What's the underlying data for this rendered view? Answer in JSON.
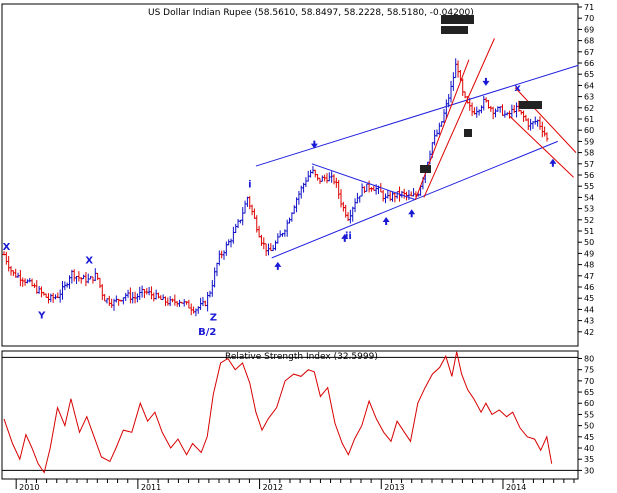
{
  "colors": {
    "frame": "#000000",
    "price_bar": "#1010c8",
    "price_bar_red": "#e00000",
    "trend_blue": "#2020e0",
    "trend_red": "#e00000",
    "rsi_line": "#d80000",
    "label_blue": "#1a1ad6",
    "background": "#ffffff"
  },
  "price_panel": {
    "title": "US Dollar Indian Rupee  (58.5610, 58.8497, 58.2228, 58.5180, -0.04200)"
  },
  "rsi_panel": {
    "title": "Relative Strength Index (32.5999)"
  },
  "x_axis": {
    "labels": [
      "2010",
      "2011",
      "2012",
      "2013",
      "2014"
    ]
  },
  "chart_data": [
    {
      "type": "ohlc",
      "title": "US Dollar Indian Rupee  (58.5610, 58.8497, 58.2228, 58.5180, -0.04200)",
      "ylim": [
        41,
        71
      ],
      "y_ticks": [
        42,
        43,
        44,
        45,
        46,
        47,
        48,
        49,
        50,
        51,
        52,
        53,
        54,
        55,
        56,
        57,
        58,
        59,
        60,
        61,
        62,
        63,
        64,
        65,
        66,
        67,
        68,
        69,
        70,
        71
      ],
      "x_range": [
        2009.9,
        2014.6
      ],
      "series_close": [
        [
          2009.9,
          48.9
        ],
        [
          2009.97,
          47.2
        ],
        [
          2010.05,
          46.8
        ],
        [
          2010.12,
          46.2
        ],
        [
          2010.2,
          45.5
        ],
        [
          2010.27,
          44.9
        ],
        [
          2010.34,
          45.2
        ],
        [
          2010.4,
          46.0
        ],
        [
          2010.45,
          47.3
        ],
        [
          2010.52,
          46.8
        ],
        [
          2010.6,
          46.6
        ],
        [
          2010.66,
          47.1
        ],
        [
          2010.72,
          45.0
        ],
        [
          2010.8,
          44.6
        ],
        [
          2010.9,
          45.3
        ],
        [
          2010.97,
          45.0
        ],
        [
          2011.05,
          45.6
        ],
        [
          2011.12,
          45.3
        ],
        [
          2011.2,
          44.8
        ],
        [
          2011.27,
          44.6
        ],
        [
          2011.34,
          44.8
        ],
        [
          2011.4,
          44.4
        ],
        [
          2011.47,
          44.0
        ],
        [
          2011.55,
          44.5
        ],
        [
          2011.6,
          45.8
        ],
        [
          2011.66,
          48.5
        ],
        [
          2011.72,
          49.5
        ],
        [
          2011.78,
          50.6
        ],
        [
          2011.85,
          52.3
        ],
        [
          2011.9,
          54.0
        ],
        [
          2011.95,
          52.3
        ],
        [
          2012.02,
          50.0
        ],
        [
          2012.08,
          49.0
        ],
        [
          2012.15,
          50.2
        ],
        [
          2012.22,
          51.5
        ],
        [
          2012.3,
          53.8
        ],
        [
          2012.38,
          55.6
        ],
        [
          2012.43,
          56.4
        ],
        [
          2012.48,
          55.5
        ],
        [
          2012.55,
          55.8
        ],
        [
          2012.62,
          55.5
        ],
        [
          2012.68,
          53.2
        ],
        [
          2012.73,
          52.2
        ],
        [
          2012.78,
          53.6
        ],
        [
          2012.85,
          54.8
        ],
        [
          2012.92,
          55.0
        ],
        [
          2012.98,
          54.6
        ],
        [
          2013.04,
          53.8
        ],
        [
          2013.1,
          54.2
        ],
        [
          2013.17,
          54.3
        ],
        [
          2013.24,
          54.0
        ],
        [
          2013.3,
          54.3
        ],
        [
          2013.36,
          56.5
        ],
        [
          2013.42,
          58.9
        ],
        [
          2013.48,
          60.2
        ],
        [
          2013.52,
          61.6
        ],
        [
          2013.57,
          63.6
        ],
        [
          2013.62,
          66.2
        ],
        [
          2013.66,
          63.5
        ],
        [
          2013.7,
          62.4
        ],
        [
          2013.75,
          61.6
        ],
        [
          2013.8,
          62.0
        ],
        [
          2013.85,
          62.6
        ],
        [
          2013.92,
          61.8
        ],
        [
          2013.98,
          61.8
        ],
        [
          2014.03,
          61.2
        ],
        [
          2014.1,
          62.0
        ],
        [
          2014.16,
          61.3
        ],
        [
          2014.22,
          60.4
        ],
        [
          2014.28,
          60.9
        ],
        [
          2014.34,
          59.8
        ],
        [
          2014.38,
          58.6
        ]
      ],
      "wave_labels": [
        {
          "text": "X",
          "x": 2009.92,
          "y": 49.3
        },
        {
          "text": "Y",
          "x": 2010.21,
          "y": 43.2
        },
        {
          "text": "X",
          "x": 2010.6,
          "y": 48.1
        },
        {
          "text": "Z",
          "x": 2011.62,
          "y": 43.0
        },
        {
          "text": "B/2",
          "x": 2011.57,
          "y": 41.7
        },
        {
          "text": "i",
          "x": 2011.92,
          "y": 54.9
        },
        {
          "text": "ii",
          "x": 2012.73,
          "y": 50.3
        },
        {
          "text": "x",
          "x": 2014.12,
          "y": 63.5
        }
      ],
      "arrows": [
        {
          "dir": "up",
          "x": 2012.15,
          "y": 47.8
        },
        {
          "dir": "down",
          "x": 2012.45,
          "y": 58.8
        },
        {
          "dir": "up",
          "x": 2012.7,
          "y": 50.3
        },
        {
          "dir": "up",
          "x": 2013.04,
          "y": 51.8
        },
        {
          "dir": "up",
          "x": 2013.25,
          "y": 52.5
        },
        {
          "dir": "down",
          "x": 2013.86,
          "y": 64.4
        },
        {
          "dir": "up",
          "x": 2014.41,
          "y": 57.0
        }
      ],
      "trendlines_blue": [
        [
          [
            2011.97,
            56.8
          ],
          [
            2014.62,
            65.8
          ]
        ],
        [
          [
            2012.1,
            48.6
          ],
          [
            2014.45,
            59.0
          ]
        ],
        [
          [
            2012.43,
            57.0
          ],
          [
            2013.28,
            53.8
          ]
        ]
      ],
      "trendlines_red": [
        [
          [
            2013.28,
            53.8
          ],
          [
            2013.72,
            66.3
          ]
        ],
        [
          [
            2013.35,
            54.0
          ],
          [
            2013.93,
            68.2
          ]
        ],
        [
          [
            2014.1,
            63.8
          ],
          [
            2014.6,
            58.0
          ]
        ],
        [
          [
            2014.05,
            61.3
          ],
          [
            2014.58,
            55.8
          ]
        ]
      ]
    },
    {
      "type": "line",
      "title": "Relative Strength Index (32.5999)",
      "ylim": [
        27.5,
        82
      ],
      "y_ticks": [
        30,
        35,
        40,
        45,
        50,
        55,
        60,
        65,
        70,
        75,
        80
      ],
      "hlines": [
        30,
        80.5
      ],
      "x_range": [
        2009.9,
        2014.6
      ],
      "values": [
        [
          2009.9,
          53
        ],
        [
          2009.97,
          42
        ],
        [
          2010.03,
          35
        ],
        [
          2010.08,
          46
        ],
        [
          2010.13,
          40
        ],
        [
          2010.18,
          33
        ],
        [
          2010.23,
          29
        ],
        [
          2010.28,
          40
        ],
        [
          2010.34,
          58
        ],
        [
          2010.4,
          50
        ],
        [
          2010.45,
          62
        ],
        [
          2010.52,
          47
        ],
        [
          2010.58,
          54
        ],
        [
          2010.64,
          45
        ],
        [
          2010.7,
          36
        ],
        [
          2010.77,
          34
        ],
        [
          2010.82,
          40
        ],
        [
          2010.88,
          48
        ],
        [
          2010.95,
          47
        ],
        [
          2011.02,
          60
        ],
        [
          2011.08,
          52
        ],
        [
          2011.14,
          56
        ],
        [
          2011.2,
          47
        ],
        [
          2011.27,
          40
        ],
        [
          2011.33,
          44
        ],
        [
          2011.4,
          37
        ],
        [
          2011.45,
          42
        ],
        [
          2011.52,
          38
        ],
        [
          2011.57,
          45
        ],
        [
          2011.62,
          64
        ],
        [
          2011.68,
          78
        ],
        [
          2011.74,
          80
        ],
        [
          2011.8,
          75
        ],
        [
          2011.86,
          78
        ],
        [
          2011.92,
          69
        ],
        [
          2011.97,
          56
        ],
        [
          2012.02,
          48
        ],
        [
          2012.07,
          53
        ],
        [
          2012.14,
          58
        ],
        [
          2012.21,
          70
        ],
        [
          2012.28,
          73
        ],
        [
          2012.34,
          72
        ],
        [
          2012.4,
          75
        ],
        [
          2012.45,
          74
        ],
        [
          2012.5,
          63
        ],
        [
          2012.56,
          67
        ],
        [
          2012.62,
          51
        ],
        [
          2012.68,
          42
        ],
        [
          2012.73,
          37
        ],
        [
          2012.78,
          44
        ],
        [
          2012.84,
          50
        ],
        [
          2012.9,
          61
        ],
        [
          2012.96,
          53
        ],
        [
          2013.02,
          47
        ],
        [
          2013.08,
          43
        ],
        [
          2013.13,
          52
        ],
        [
          2013.19,
          47
        ],
        [
          2013.24,
          43
        ],
        [
          2013.3,
          60
        ],
        [
          2013.36,
          67
        ],
        [
          2013.42,
          73
        ],
        [
          2013.48,
          76
        ],
        [
          2013.53,
          81
        ],
        [
          2013.58,
          72
        ],
        [
          2013.62,
          83
        ],
        [
          2013.66,
          73
        ],
        [
          2013.71,
          66
        ],
        [
          2013.76,
          62
        ],
        [
          2013.82,
          56
        ],
        [
          2013.86,
          60
        ],
        [
          2013.91,
          55
        ],
        [
          2013.97,
          57
        ],
        [
          2014.03,
          54
        ],
        [
          2014.08,
          56
        ],
        [
          2014.14,
          49
        ],
        [
          2014.2,
          45
        ],
        [
          2014.26,
          44
        ],
        [
          2014.31,
          39
        ],
        [
          2014.36,
          45
        ],
        [
          2014.4,
          33
        ]
      ]
    }
  ]
}
